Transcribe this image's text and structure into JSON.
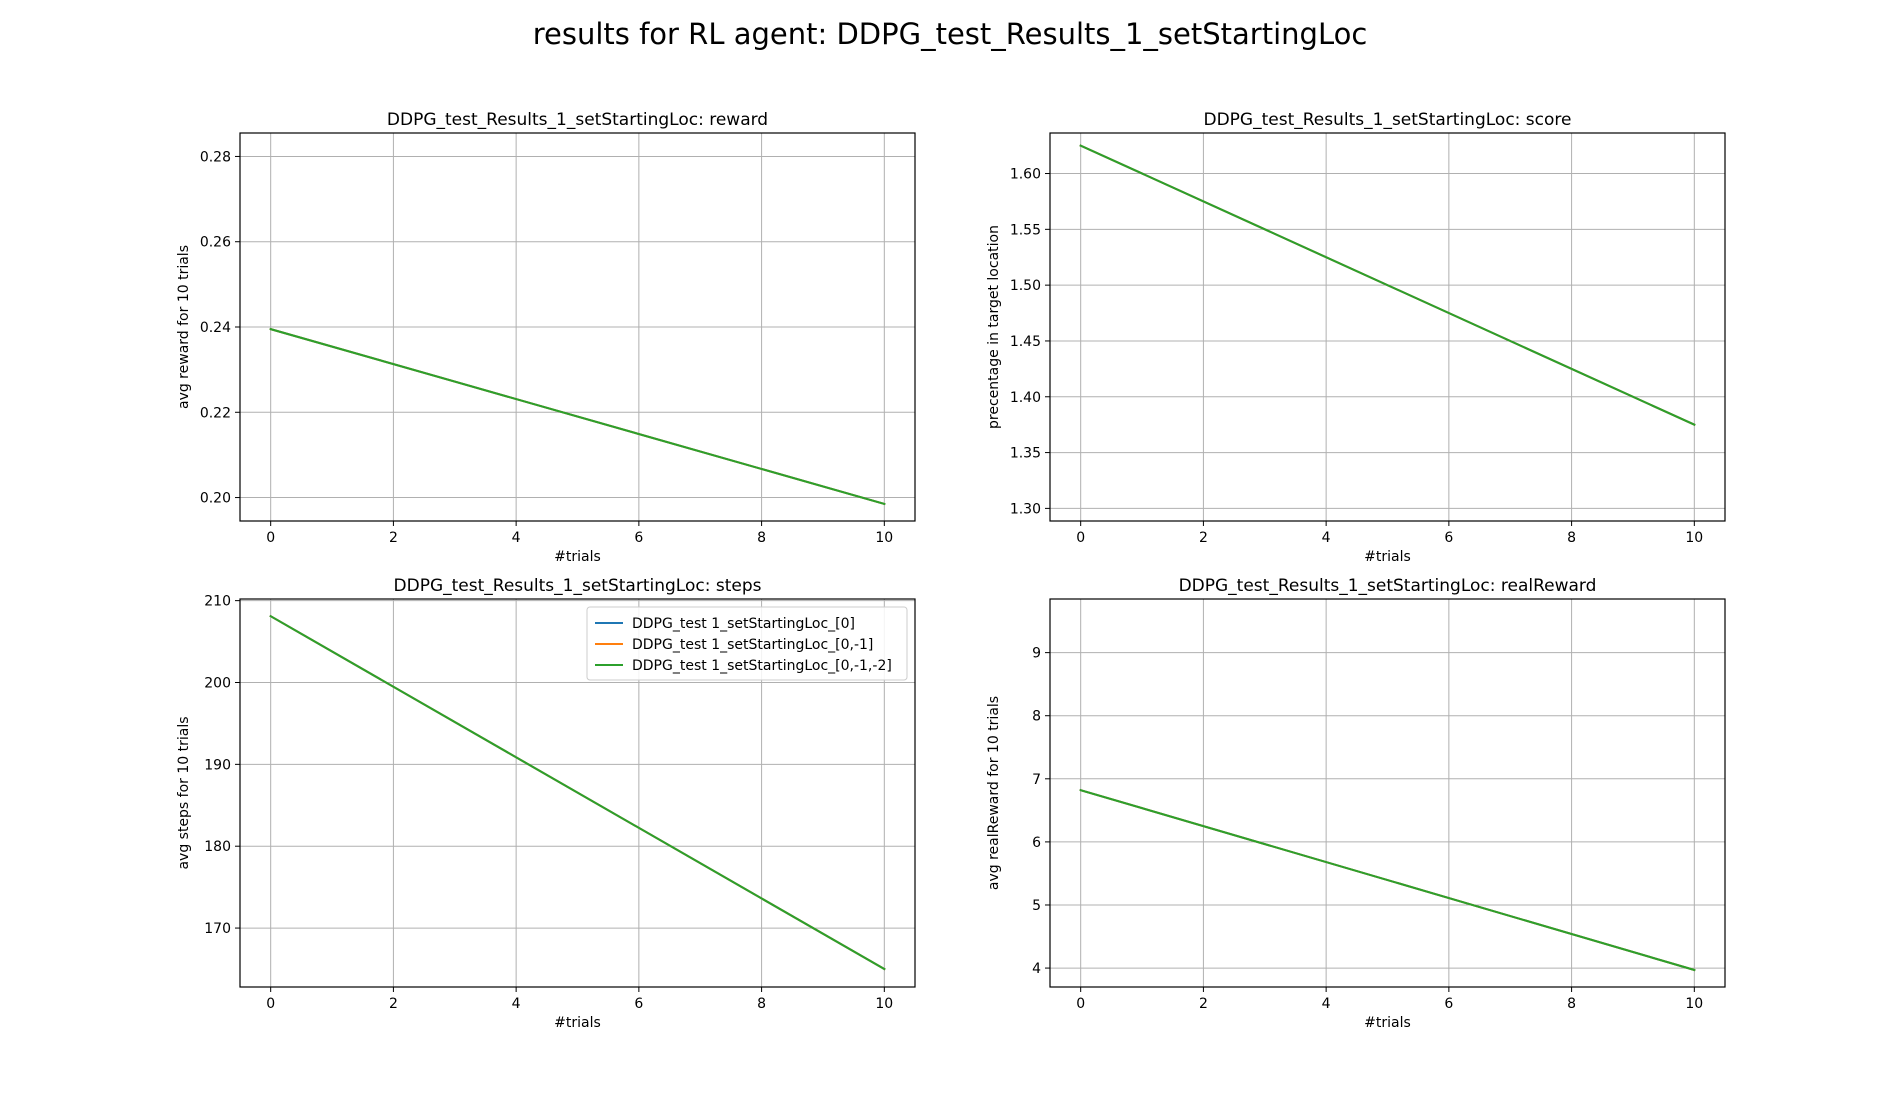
{
  "figure": {
    "suptitle": "results for RL agent: DDPG_test_Results_1_setStartingLoc"
  },
  "colors": {
    "series_0": "#1f77b4",
    "series_1": "#ff7f0e",
    "series_2": "#2ca02c",
    "grid": "#b0b0b0",
    "axis": "#000000"
  },
  "chart_data": [
    {
      "type": "line",
      "title": "DDPG_test_Results_1_setStartingLoc: reward",
      "xlabel": "#trials",
      "ylabel": "avg reward for 10 trials",
      "xlim": [
        -0.5,
        10.5
      ],
      "ylim": [
        0.1945,
        0.2855
      ],
      "xticks": [
        0,
        2,
        4,
        6,
        8,
        10
      ],
      "yticks": [
        0.2,
        0.22,
        0.24,
        0.26,
        0.28
      ],
      "ytick_labels": [
        "0.20",
        "0.22",
        "0.24",
        "0.26",
        "0.28"
      ],
      "grid": true,
      "legend": null,
      "series": [
        {
          "color_key": "series_0",
          "x": [
            0,
            10
          ],
          "y": [
            0.2395,
            0.1985
          ]
        },
        {
          "color_key": "series_1",
          "x": [
            0,
            10
          ],
          "y": [
            0.2395,
            0.1985
          ]
        },
        {
          "color_key": "series_2",
          "x": [
            0,
            10
          ],
          "y": [
            0.2395,
            0.1985
          ]
        }
      ]
    },
    {
      "type": "line",
      "title": "DDPG_test_Results_1_setStartingLoc: score",
      "xlabel": "#trials",
      "ylabel": "precentage in target location",
      "xlim": [
        -0.5,
        10.5
      ],
      "ylim": [
        1.2887,
        1.6363
      ],
      "xticks": [
        0,
        2,
        4,
        6,
        8,
        10
      ],
      "yticks": [
        1.3,
        1.35,
        1.4,
        1.45,
        1.5,
        1.55,
        1.6
      ],
      "ytick_labels": [
        "1.30",
        "1.35",
        "1.40",
        "1.45",
        "1.50",
        "1.55",
        "1.60"
      ],
      "grid": true,
      "legend": null,
      "series": [
        {
          "color_key": "series_0",
          "x": [
            0,
            10
          ],
          "y": [
            1.625,
            1.375
          ]
        },
        {
          "color_key": "series_1",
          "x": [
            0,
            10
          ],
          "y": [
            1.625,
            1.375
          ]
        },
        {
          "color_key": "series_2",
          "x": [
            0,
            10
          ],
          "y": [
            1.625,
            1.375
          ]
        }
      ]
    },
    {
      "type": "line",
      "title": "DDPG_test_Results_1_setStartingLoc: steps",
      "xlabel": "#trials",
      "ylabel": "avg steps for 10 trials",
      "xlim": [
        -0.5,
        10.5
      ],
      "ylim": [
        162.8,
        210.2
      ],
      "xticks": [
        0,
        2,
        4,
        6,
        8,
        10
      ],
      "yticks": [
        170,
        180,
        190,
        200,
        210
      ],
      "ytick_labels": [
        "170",
        "180",
        "190",
        "200",
        "210"
      ],
      "grid": true,
      "legend": {
        "placement": "upper right",
        "entries": [
          {
            "label": "DDPG_test 1_setStartingLoc_[0]",
            "color_key": "series_0"
          },
          {
            "label": "DDPG_test 1_setStartingLoc_[0,-1]",
            "color_key": "series_1"
          },
          {
            "label": "DDPG_test 1_setStartingLoc_[0,-1,-2]",
            "color_key": "series_2"
          }
        ]
      },
      "series": [
        {
          "name": "DDPG_test 1_setStartingLoc_[0]",
          "color_key": "series_0",
          "x": [
            0,
            10
          ],
          "y": [
            208.1,
            165.0
          ]
        },
        {
          "name": "DDPG_test 1_setStartingLoc_[0,-1]",
          "color_key": "series_1",
          "x": [
            0,
            10
          ],
          "y": [
            208.1,
            165.0
          ]
        },
        {
          "name": "DDPG_test 1_setStartingLoc_[0,-1,-2]",
          "color_key": "series_2",
          "x": [
            0,
            10
          ],
          "y": [
            208.1,
            165.0
          ]
        }
      ]
    },
    {
      "type": "line",
      "title": "DDPG_test_Results_1_setStartingLoc: realReward",
      "xlabel": "#trials",
      "ylabel": "avg realReward for 10 trials",
      "xlim": [
        -0.5,
        10.5
      ],
      "ylim": [
        3.7,
        9.85
      ],
      "xticks": [
        0,
        2,
        4,
        6,
        8,
        10
      ],
      "yticks": [
        4,
        5,
        6,
        7,
        8,
        9
      ],
      "ytick_labels": [
        "4",
        "5",
        "6",
        "7",
        "8",
        "9"
      ],
      "grid": true,
      "legend": null,
      "series": [
        {
          "color_key": "series_0",
          "x": [
            0,
            10
          ],
          "y": [
            6.82,
            3.97
          ]
        },
        {
          "color_key": "series_1",
          "x": [
            0,
            10
          ],
          "y": [
            6.82,
            3.97
          ]
        },
        {
          "color_key": "series_2",
          "x": [
            0,
            10
          ],
          "y": [
            6.82,
            3.97
          ]
        }
      ]
    }
  ]
}
